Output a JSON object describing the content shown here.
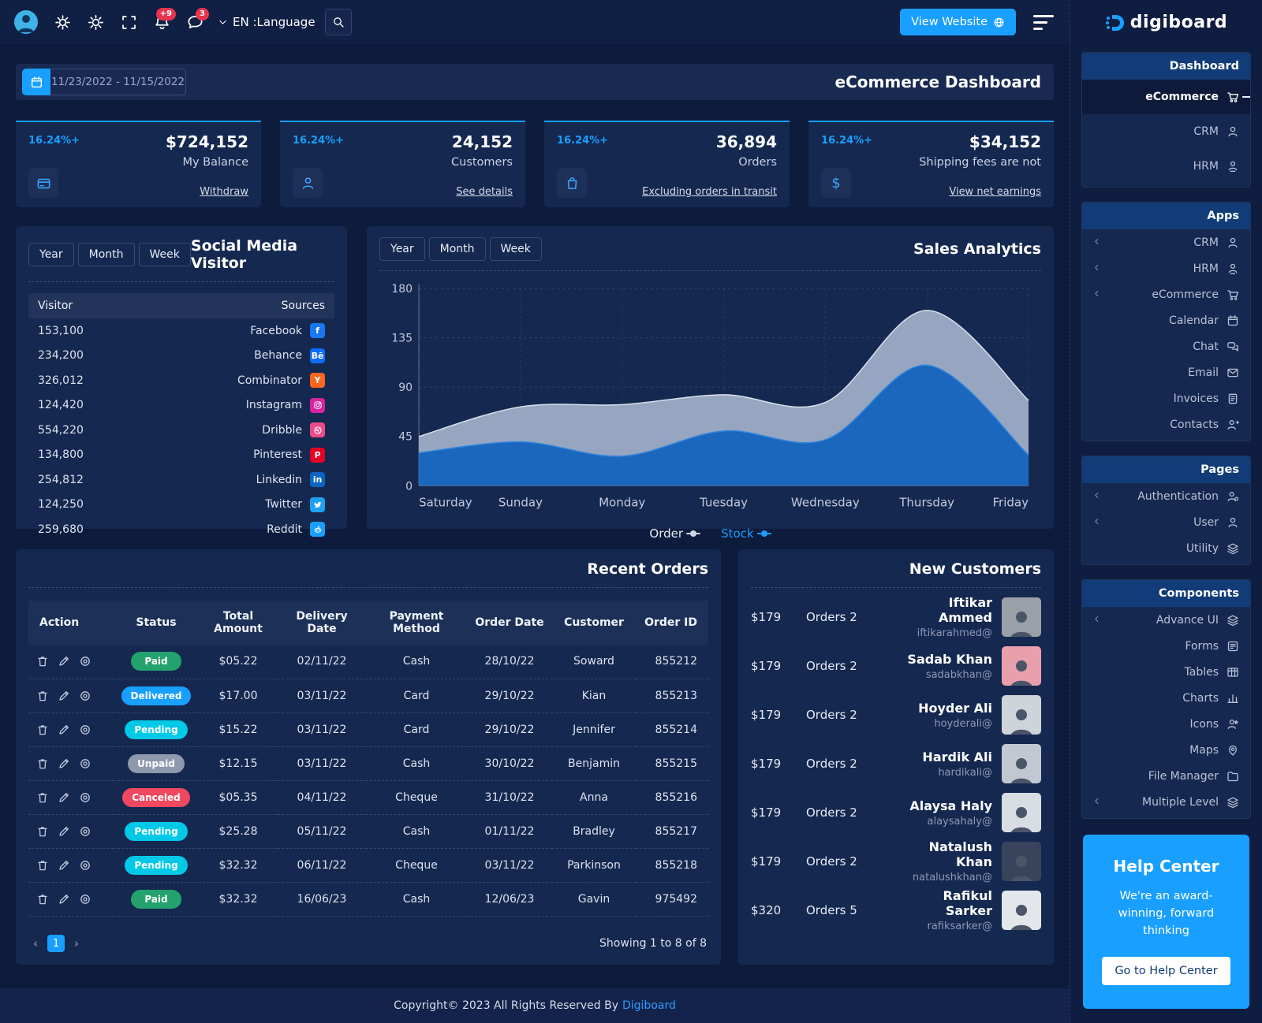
{
  "colors": {
    "accent": "#199fff",
    "panel": "#152850",
    "order_series": "#a9b6cf",
    "stock_series": "#1b67be"
  },
  "topbar": {
    "bell_badge": "+9",
    "chat_badge": "3",
    "language_label": "EN :Language",
    "view_website_label": "View Website",
    "brand": "digiboard"
  },
  "title_bar": {
    "date_range": "11/23/2022 - 11/15/2022",
    "title": "eCommerce Dashboard"
  },
  "stats": [
    {
      "change": "16.24%+",
      "value": "$724,152",
      "label": "My Balance",
      "link": "Withdraw",
      "icon": "wallet-icon"
    },
    {
      "change": "16.24%+",
      "value": "24,152",
      "label": "Customers",
      "link": "See details",
      "icon": "user-icon"
    },
    {
      "change": "16.24%+",
      "value": "36,894",
      "label": "Orders",
      "link": "Excluding orders in transit",
      "icon": "bag-icon"
    },
    {
      "change": "16.24%+",
      "value": "$34,152",
      "label": "Shipping fees are not",
      "link": "View net earnings",
      "icon": "dollar-icon"
    }
  ],
  "social": {
    "tabs": [
      "Year",
      "Month",
      "Week"
    ],
    "title": "Social Media Visitor",
    "col_visitor": "Visitor",
    "col_sources": "Sources",
    "rows": [
      {
        "visitors": "153,100",
        "source": "Facebook",
        "icon": "facebook-icon",
        "color": "#1877f2"
      },
      {
        "visitors": "234,200",
        "source": "Behance",
        "icon": "behance-icon",
        "color": "#0f6cff"
      },
      {
        "visitors": "326,012",
        "source": "Combinator",
        "icon": "combinator-icon",
        "color": "#fb651e"
      },
      {
        "visitors": "124,420",
        "source": "Instagram",
        "icon": "instagram-icon",
        "color": "#d6249f"
      },
      {
        "visitors": "554,220",
        "source": "Dribble",
        "icon": "dribble-icon",
        "color": "#ea4c89"
      },
      {
        "visitors": "134,800",
        "source": "Pinterest",
        "icon": "pinterest-icon",
        "color": "#e60023"
      },
      {
        "visitors": "254,812",
        "source": "Linkedin",
        "icon": "linkedin-icon",
        "color": "#0a66c2"
      },
      {
        "visitors": "124,250",
        "source": "Twitter",
        "icon": "twitter-icon",
        "color": "#1da1f2"
      },
      {
        "visitors": "259,680",
        "source": "Reddit",
        "icon": "reddit-icon",
        "color": "#199fff"
      }
    ]
  },
  "sales": {
    "tabs": [
      "Year",
      "Month",
      "Week"
    ],
    "title": "Sales Analytics"
  },
  "chart_data": {
    "type": "area",
    "title": "Sales Analytics",
    "categories": [
      "Saturday",
      "Sunday",
      "Monday",
      "Tuesday",
      "Wednesday",
      "Thursday",
      "Friday"
    ],
    "series": [
      {
        "name": "Order",
        "values": [
          45,
          72,
          74,
          83,
          76,
          160,
          78
        ],
        "color": "#a9b6cf"
      },
      {
        "name": "Stock",
        "values": [
          30,
          40,
          27,
          50,
          42,
          110,
          28
        ],
        "color": "#1b67be"
      }
    ],
    "ylim": [
      0,
      180
    ],
    "yticks": [
      0,
      45,
      90,
      135,
      180
    ],
    "grid": true,
    "legend_position": "bottom"
  },
  "orders": {
    "title": "Recent Orders",
    "columns": [
      "Action",
      "Status",
      "Total Amount",
      "Delivery Date",
      "Payment Method",
      "Order Date",
      "Customer",
      "Order ID"
    ],
    "status_colors": {
      "Paid": "#23a26d",
      "Delivered": "#199fff",
      "Pending": "#00c9e8",
      "Unpaid": "#8f99ad",
      "Canceled": "#ef4860"
    },
    "rows": [
      {
        "status": "Paid",
        "amount": "$05.22",
        "delivery": "02/11/22",
        "payment": "Cash",
        "order_date": "28/10/22",
        "customer": "Soward",
        "id": "855212"
      },
      {
        "status": "Delivered",
        "amount": "$17.00",
        "delivery": "03/11/22",
        "payment": "Card",
        "order_date": "29/10/22",
        "customer": "Kian",
        "id": "855213"
      },
      {
        "status": "Pending",
        "amount": "$15.22",
        "delivery": "03/11/22",
        "payment": "Card",
        "order_date": "29/10/22",
        "customer": "Jennifer",
        "id": "855214"
      },
      {
        "status": "Unpaid",
        "amount": "$12.15",
        "delivery": "03/11/22",
        "payment": "Cash",
        "order_date": "30/10/22",
        "customer": "Benjamin",
        "id": "855215"
      },
      {
        "status": "Canceled",
        "amount": "$05.35",
        "delivery": "04/11/22",
        "payment": "Cheque",
        "order_date": "31/10/22",
        "customer": "Anna",
        "id": "855216"
      },
      {
        "status": "Pending",
        "amount": "$25.28",
        "delivery": "05/11/22",
        "payment": "Cash",
        "order_date": "01/11/22",
        "customer": "Bradley",
        "id": "855217"
      },
      {
        "status": "Pending",
        "amount": "$32.32",
        "delivery": "06/11/22",
        "payment": "Cheque",
        "order_date": "03/11/22",
        "customer": "Parkinson",
        "id": "855218"
      },
      {
        "status": "Paid",
        "amount": "$32.32",
        "delivery": "16/06/23",
        "payment": "Cash",
        "order_date": "12/06/23",
        "customer": "Gavin",
        "id": "975492"
      }
    ],
    "pagination": {
      "page": "1",
      "showing": "Showing 1 to 8 of 8"
    }
  },
  "customers": {
    "title": "New Customers",
    "rows": [
      {
        "amount": "$179",
        "orders": "Orders 2",
        "name": "Iftikar Ammed",
        "email": "iftikarahmed@",
        "avatar_bg": "#9aa0a8"
      },
      {
        "amount": "$179",
        "orders": "Orders 2",
        "name": "Sadab Khan",
        "email": "sadabkhan@",
        "avatar_bg": "#e8a0ac"
      },
      {
        "amount": "$179",
        "orders": "Orders 2",
        "name": "Hoyder Ali",
        "email": "hoyderali@",
        "avatar_bg": "#cfd4da"
      },
      {
        "amount": "$179",
        "orders": "Orders 2",
        "name": "Hardik Ali",
        "email": "hardikali@",
        "avatar_bg": "#c2c8d2"
      },
      {
        "amount": "$179",
        "orders": "Orders 2",
        "name": "Alaysa Haly",
        "email": "alaysahaly@",
        "avatar_bg": "#d8dde3"
      },
      {
        "amount": "$179",
        "orders": "Orders 2",
        "name": "Natalush Khan",
        "email": "natalushkhan@",
        "avatar_bg": "#39445c"
      },
      {
        "amount": "$320",
        "orders": "Orders 5",
        "name": "Rafikul Sarker",
        "email": "rafiksarker@",
        "avatar_bg": "#e3e6ea"
      }
    ]
  },
  "sidebar": {
    "sections": [
      {
        "header": "Dashboard",
        "tall": true,
        "items": [
          {
            "label": "eCommerce",
            "icon": "cart-icon",
            "active": true
          },
          {
            "label": "CRM",
            "icon": "user-icon"
          },
          {
            "label": "HRM",
            "icon": "user-badge-icon"
          }
        ]
      },
      {
        "header": "Apps",
        "items": [
          {
            "label": "CRM",
            "icon": "user-icon",
            "expandable": true
          },
          {
            "label": "HRM",
            "icon": "user-badge-icon",
            "expandable": true
          },
          {
            "label": "eCommerce",
            "icon": "cart-icon",
            "expandable": true
          },
          {
            "label": "Calendar",
            "icon": "calendar-icon"
          },
          {
            "label": "Chat",
            "icon": "chat-icon"
          },
          {
            "label": "Email",
            "icon": "mail-icon"
          },
          {
            "label": "Invoices",
            "icon": "invoice-icon"
          },
          {
            "label": "Contacts",
            "icon": "user-plus-icon"
          }
        ]
      },
      {
        "header": "Pages",
        "items": [
          {
            "label": "Authentication",
            "icon": "user-gear-icon",
            "expandable": true
          },
          {
            "label": "User",
            "icon": "user-icon",
            "expandable": true
          },
          {
            "label": "Utility",
            "icon": "layers-icon"
          }
        ]
      },
      {
        "header": "Components",
        "items": [
          {
            "label": "Advance UI",
            "icon": "layers-icon",
            "expandable": true
          },
          {
            "label": "Forms",
            "icon": "form-icon"
          },
          {
            "label": "Tables",
            "icon": "table-icon"
          },
          {
            "label": "Charts",
            "icon": "chart-icon"
          },
          {
            "label": "Icons",
            "icon": "icons-icon"
          },
          {
            "label": "Maps",
            "icon": "map-pin-icon"
          },
          {
            "label": "File Manager",
            "icon": "folder-icon"
          },
          {
            "label": "Multiple Level",
            "icon": "layers-icon",
            "expandable": true
          }
        ]
      }
    ],
    "help": {
      "title": "Help Center",
      "text": "We're an award-winning, forward thinking",
      "button": "Go to Help Center"
    }
  },
  "footer": {
    "text": "Copyright© 2023 All Rights Reserved By",
    "brand": "Digiboard"
  }
}
